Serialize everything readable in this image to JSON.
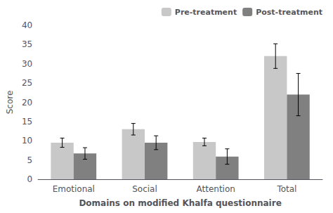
{
  "chart_data": {
    "type": "bar",
    "xlabel": "Domains on modified Khalfa questionnaire",
    "ylabel": "Score",
    "categories": [
      "Emotional",
      "Social",
      "Attention",
      "Total"
    ],
    "series": [
      {
        "name": "Pre-treatment",
        "color": "#c8c8c8",
        "values": [
          9.5,
          13.0,
          9.7,
          32.0
        ],
        "errors": [
          1.2,
          1.5,
          1.0,
          3.2
        ]
      },
      {
        "name": "Post-treatment",
        "color": "#808080",
        "values": [
          6.7,
          9.5,
          5.9,
          22.0
        ],
        "errors": [
          1.5,
          1.8,
          2.0,
          5.5
        ]
      }
    ],
    "ylim": [
      0,
      40
    ],
    "yticks": [
      0,
      5,
      10,
      15,
      20,
      25,
      30,
      35,
      40
    ],
    "grid": false,
    "legend": "upper right"
  }
}
